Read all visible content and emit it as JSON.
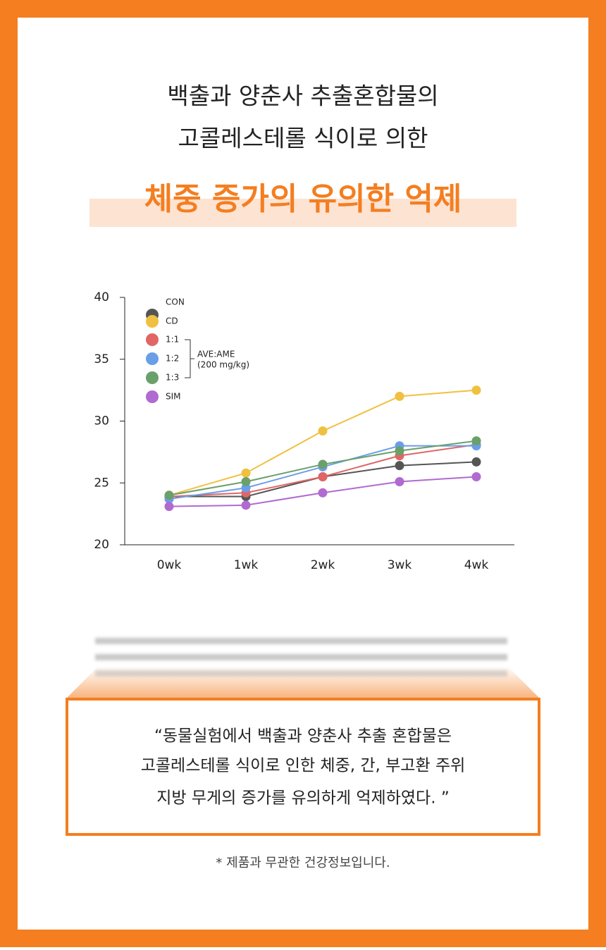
{
  "header": {
    "lines": [
      "백출과 양춘사 추출혼합물의",
      "고콜레스테롤 식이로 의한"
    ],
    "highlight": "체중 증가의 유의한 억제"
  },
  "chart_data": {
    "type": "line",
    "categories": [
      "0wk",
      "1wk",
      "2wk",
      "3wk",
      "4wk"
    ],
    "series": [
      {
        "name": "CON",
        "color": "#555555",
        "values": [
          23.9,
          23.9,
          25.5,
          26.4,
          26.7
        ]
      },
      {
        "name": "CD",
        "color": "#f0c040",
        "values": [
          24.0,
          25.8,
          29.2,
          32.0,
          32.5
        ]
      },
      {
        "name": "1:1",
        "color": "#e06666",
        "values": [
          23.9,
          24.2,
          25.5,
          27.2,
          28.1
        ]
      },
      {
        "name": "1:2",
        "color": "#6a9ee8",
        "values": [
          23.7,
          24.6,
          26.3,
          28.0,
          28.0
        ]
      },
      {
        "name": "1:3",
        "color": "#6aa06a",
        "values": [
          24.0,
          25.1,
          26.5,
          27.6,
          28.4
        ]
      },
      {
        "name": "SIM",
        "color": "#b06ad0",
        "values": [
          23.1,
          23.2,
          24.2,
          25.1,
          25.5
        ]
      }
    ],
    "ylim": [
      20,
      40
    ],
    "yticks": [
      20,
      25,
      30,
      35,
      40
    ],
    "annotation": [
      "AVE:AME",
      "(200 mg/kg)"
    ]
  },
  "quote": [
    "“동물실험에서 백출과 양춘사 추출 혼합물은",
    "고콜레스테롤 식이로 인한 체중, 간, 부고환 주위",
    "지방 무게의 증가를 유의하게 억제하였다. ”"
  ],
  "footnote": "* 제품과 무관한 건강정보입니다."
}
